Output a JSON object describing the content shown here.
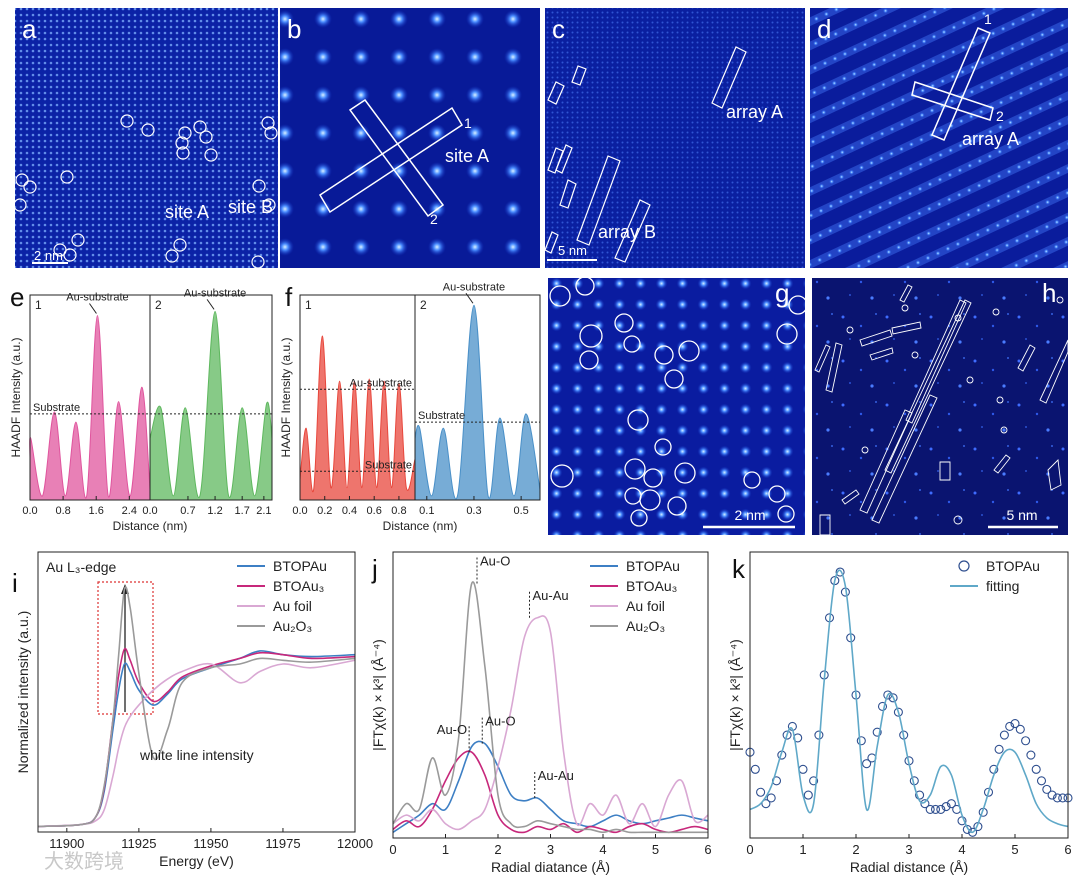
{
  "images": [
    {
      "label": "a",
      "texts": [
        "site A",
        "site B"
      ],
      "scale": "2 nm"
    },
    {
      "label": "b",
      "texts": [
        "site A",
        "1",
        "2"
      ]
    },
    {
      "label": "c",
      "texts": [
        "array A",
        "array B"
      ],
      "scale": "5 nm"
    },
    {
      "label": "d",
      "texts": [
        "1",
        "2",
        "array A"
      ]
    },
    {
      "label": "g",
      "scale": "2 nm"
    },
    {
      "label": "h",
      "scale": "5 nm"
    }
  ],
  "chart_data": [
    {
      "type": "area",
      "panel": "e",
      "label": "1",
      "ylabel": "HAADF Intensity (a.u.)",
      "xlabel": "Distance (nm)",
      "color": "#e0559e",
      "x": [
        0,
        0.02,
        0.3,
        0.59,
        0.85,
        1.11,
        1.37,
        1.63,
        1.89,
        2.14,
        2.42,
        2.7,
        2.9
      ],
      "values": [
        0.2,
        0.3,
        0.02,
        0.43,
        0.02,
        0.38,
        0.02,
        0.9,
        0.02,
        0.48,
        0.02,
        0.55,
        0.05
      ],
      "xlim": [
        0,
        2.9
      ],
      "ylim": [
        0,
        1
      ],
      "xticks": [
        {
          "value": 0,
          "label": "0.0"
        },
        0.8,
        1.6,
        2.4
      ],
      "hlines": [
        {
          "y": 0.42,
          "label": "Substrate"
        }
      ],
      "annotations": [
        {
          "text": "Au-substrate",
          "x": 1.63,
          "y": 0.9
        }
      ]
    },
    {
      "type": "area",
      "label": "2",
      "color": "#5fb85f",
      "x": [
        0,
        0.2,
        0.43,
        0.65,
        0.92,
        1.2,
        1.45,
        1.7,
        1.93,
        2.15,
        2.25
      ],
      "values": [
        0.3,
        0.45,
        0.02,
        0.45,
        0.02,
        0.92,
        0.02,
        0.45,
        0.02,
        0.47,
        0.3
      ],
      "xlim": [
        0,
        2.25
      ],
      "ylim": [
        0,
        1
      ],
      "xticks": [
        {
          "value": 0,
          "label": "0.0"
        },
        0.7,
        1.2,
        1.7,
        2.1
      ],
      "hlines": [
        {
          "y": 0.42
        }
      ],
      "annotations": [
        {
          "text": "Au-substrate",
          "x": 1.2,
          "y": 0.92
        }
      ]
    },
    {
      "type": "area",
      "panel": "f",
      "label": "1",
      "ylabel": "HAADF Intensity (a.u.)",
      "xlabel": "Distance (nm)",
      "color": "#e8473c",
      "x": [
        0,
        0.05,
        0.11,
        0.18,
        0.25,
        0.32,
        0.38,
        0.44,
        0.5,
        0.56,
        0.62,
        0.68,
        0.74,
        0.8,
        0.86,
        0.93
      ],
      "values": [
        0.1,
        0.35,
        0.05,
        0.8,
        0.06,
        0.58,
        0.06,
        0.58,
        0.06,
        0.59,
        0.06,
        0.58,
        0.06,
        0.57,
        0.06,
        0.2
      ],
      "xlim": [
        0,
        0.93
      ],
      "ylim": [
        0,
        1
      ],
      "xticks": [
        {
          "value": 0,
          "label": "0.0"
        },
        0.2,
        0.4,
        0.6,
        0.8
      ],
      "hlines": [
        {
          "y": 0.54,
          "label": "Au-substrate"
        },
        {
          "y": 0.14,
          "label": "Substrate"
        }
      ]
    },
    {
      "type": "area",
      "label": "2",
      "color": "#4a90c8",
      "x": [
        0.05,
        0.07,
        0.12,
        0.17,
        0.23,
        0.3,
        0.36,
        0.41,
        0.47,
        0.52,
        0.58
      ],
      "values": [
        0.3,
        0.35,
        0.02,
        0.35,
        0.02,
        0.95,
        0.02,
        0.4,
        0.02,
        0.42,
        0.05
      ],
      "xlim": [
        0.05,
        0.58
      ],
      "ylim": [
        0,
        1
      ],
      "xticks": [
        0.1,
        0.3,
        0.5
      ],
      "hlines": [
        {
          "y": 0.38,
          "label": "Substrate"
        }
      ],
      "annotations": [
        {
          "text": "Au-substrate",
          "x": 0.3,
          "y": 0.95
        }
      ]
    },
    {
      "type": "line",
      "panel": "i",
      "notes": [
        "Au L₃-edge",
        "white line intensity"
      ],
      "ylabel": "Normalized intensity (a.u.)",
      "xlabel": "Energy (eV)",
      "x": [
        11890,
        11905,
        11910,
        11913,
        11916,
        11918,
        11920,
        11922,
        11925,
        11930,
        11935,
        11940,
        11950,
        11960,
        11967,
        11975,
        11985,
        12000
      ],
      "series": [
        {
          "name": "BTOPAu",
          "color": "#3d7fc4",
          "values": [
            0.03,
            0.04,
            0.08,
            0.22,
            0.55,
            0.76,
            0.9,
            0.86,
            0.76,
            0.68,
            0.74,
            0.82,
            0.88,
            0.93,
            0.97,
            0.95,
            0.94,
            0.95
          ]
        },
        {
          "name": "BTOAu₃",
          "color": "#c7287b",
          "values": [
            0.03,
            0.04,
            0.08,
            0.24,
            0.6,
            0.84,
            0.98,
            0.92,
            0.8,
            0.7,
            0.75,
            0.83,
            0.89,
            0.93,
            0.96,
            0.95,
            0.93,
            0.94
          ]
        },
        {
          "name": "Au foil",
          "color": "#d9a8d3",
          "values": [
            0.03,
            0.04,
            0.06,
            0.12,
            0.3,
            0.45,
            0.56,
            0.62,
            0.68,
            0.76,
            0.82,
            0.86,
            0.9,
            0.8,
            0.86,
            0.9,
            0.88,
            0.92
          ]
        },
        {
          "name": "Au₂O₃",
          "color": "#9a9a9a",
          "values": [
            0.03,
            0.04,
            0.08,
            0.25,
            0.6,
            0.95,
            1.3,
            1.2,
            0.85,
            0.4,
            0.55,
            0.8,
            0.88,
            0.9,
            0.93,
            0.92,
            0.91,
            0.93
          ]
        }
      ],
      "xlim": [
        11890,
        12000
      ],
      "ylim": [
        0,
        1.5
      ],
      "xticks": [
        11900,
        11925,
        11950,
        11975,
        12000
      ],
      "legend": "upper right"
    },
    {
      "type": "line",
      "panel": "j",
      "ylabel": "|FTχ(k) × k³| (Å⁻⁴)",
      "xlabel": "Radial diatance (Å)",
      "x": [
        0,
        0.25,
        0.5,
        0.75,
        1,
        1.25,
        1.5,
        1.75,
        2,
        2.25,
        2.5,
        2.75,
        3,
        3.25,
        3.5,
        3.75,
        4,
        4.25,
        4.5,
        4.75,
        5,
        5.25,
        5.5,
        5.75,
        6
      ],
      "series": [
        {
          "name": "BTOPAu",
          "color": "#3d7fc4",
          "values": [
            0.02,
            0.05,
            0.08,
            0.12,
            0.1,
            0.2,
            0.32,
            0.33,
            0.25,
            0.15,
            0.13,
            0.14,
            0.1,
            0.06,
            0.05,
            0.04,
            0.06,
            0.08,
            0.06,
            0.05,
            0.06,
            0.07,
            0.08,
            0.07,
            0.06
          ]
        },
        {
          "name": "BTOAu₃",
          "color": "#c7287b",
          "values": [
            0.03,
            0.06,
            0.04,
            0.1,
            0.2,
            0.28,
            0.3,
            0.22,
            0.08,
            0.03,
            0.02,
            0.04,
            0.03,
            0.05,
            0.02,
            0.04,
            0.03,
            0.02,
            0.04,
            0.05,
            0.03,
            0.02,
            0.03,
            0.04,
            0.03
          ]
        },
        {
          "name": "Au foil",
          "color": "#d9a8d3",
          "values": [
            0.05,
            0.08,
            0.06,
            0.1,
            0.05,
            0.03,
            0.06,
            0.1,
            0.25,
            0.45,
            0.7,
            0.77,
            0.72,
            0.3,
            0.05,
            0.12,
            0.08,
            0.15,
            0.05,
            0.12,
            0.04,
            0.15,
            0.2,
            0.06,
            0.08
          ]
        },
        {
          "name": "Au₂O₃",
          "color": "#9a9a9a",
          "values": [
            0.05,
            0.12,
            0.1,
            0.28,
            0.15,
            0.35,
            0.89,
            0.6,
            0.15,
            0.05,
            0.04,
            0.06,
            0.05,
            0.04,
            0.03,
            0.03,
            0.02,
            0.03,
            0.02,
            0.02,
            0.02,
            0.02,
            0.02,
            0.02,
            0.02
          ]
        }
      ],
      "xlim": [
        0,
        6
      ],
      "ylim": [
        0,
        1
      ],
      "xticks": [
        0,
        1,
        2,
        3,
        4,
        5,
        6
      ],
      "legend": "upper right",
      "annotations": [
        {
          "text": "Au-O",
          "x": 1.6,
          "y": 0.89
        },
        {
          "text": "Au-Au",
          "x": 2.6,
          "y": 0.77
        },
        {
          "text": "Au-O",
          "x": 1.45,
          "y": 0.3
        },
        {
          "text": "Au-O",
          "x": 1.7,
          "y": 0.33
        },
        {
          "text": "Au-Au",
          "x": 2.7,
          "y": 0.14
        }
      ]
    },
    {
      "type": "line",
      "panel": "k",
      "ylabel": "|FTχ(k) × k³| (Å⁻⁴)",
      "xlabel": "Radial distance (Å)",
      "series": [
        {
          "name": "BTOPAu",
          "color": "#2f4f8f",
          "mode": "markers",
          "x": [
            0,
            0.1,
            0.2,
            0.3,
            0.4,
            0.5,
            0.6,
            0.7,
            0.8,
            0.9,
            1,
            1.1,
            1.2,
            1.3,
            1.4,
            1.5,
            1.6,
            1.7,
            1.8,
            1.9,
            2,
            2.1,
            2.2,
            2.3,
            2.4,
            2.5,
            2.6,
            2.7,
            2.8,
            2.9,
            3,
            3.1,
            3.2,
            3.3,
            3.4,
            3.5,
            3.6,
            3.7,
            3.8,
            3.9,
            4,
            4.1,
            4.2,
            4.3,
            4.4,
            4.5,
            4.6,
            4.7,
            4.8,
            4.9,
            5,
            5.1,
            5.2,
            5.3,
            5.4,
            5.5,
            5.6,
            5.7,
            5.8,
            5.9,
            6
          ],
          "values": [
            0.3,
            0.24,
            0.16,
            0.12,
            0.14,
            0.2,
            0.29,
            0.36,
            0.39,
            0.35,
            0.24,
            0.15,
            0.2,
            0.36,
            0.57,
            0.77,
            0.9,
            0.93,
            0.86,
            0.7,
            0.5,
            0.34,
            0.26,
            0.28,
            0.37,
            0.46,
            0.5,
            0.49,
            0.44,
            0.36,
            0.27,
            0.2,
            0.15,
            0.12,
            0.1,
            0.1,
            0.1,
            0.11,
            0.12,
            0.1,
            0.06,
            0.03,
            0.02,
            0.04,
            0.09,
            0.16,
            0.24,
            0.31,
            0.36,
            0.39,
            0.4,
            0.38,
            0.34,
            0.29,
            0.24,
            0.2,
            0.17,
            0.15,
            0.14,
            0.14,
            0.14
          ]
        },
        {
          "name": "fitting",
          "color": "#5fa8c8",
          "x": [
            0,
            0.2,
            0.4,
            0.6,
            0.8,
            1,
            1.2,
            1.4,
            1.6,
            1.8,
            2,
            2.2,
            2.4,
            2.6,
            2.8,
            3,
            3.2,
            3.4,
            3.6,
            3.8,
            4,
            4.2,
            4.4,
            4.6,
            4.8,
            5,
            5.2,
            5.4,
            5.6,
            5.8,
            6
          ],
          "values": [
            0.1,
            0.12,
            0.18,
            0.3,
            0.38,
            0.15,
            0.12,
            0.55,
            0.9,
            0.88,
            0.5,
            0.1,
            0.32,
            0.5,
            0.44,
            0.26,
            0.13,
            0.15,
            0.25,
            0.22,
            0.08,
            0.02,
            0.1,
            0.22,
            0.3,
            0.3,
            0.22,
            0.12,
            0.07,
            0.05,
            0.04
          ]
        }
      ],
      "xlim": [
        0,
        6
      ],
      "ylim": [
        0,
        1
      ],
      "xticks": [
        0,
        1,
        2,
        3,
        4,
        5,
        6
      ],
      "legend": "upper right"
    }
  ],
  "watermark": "大数跨境"
}
